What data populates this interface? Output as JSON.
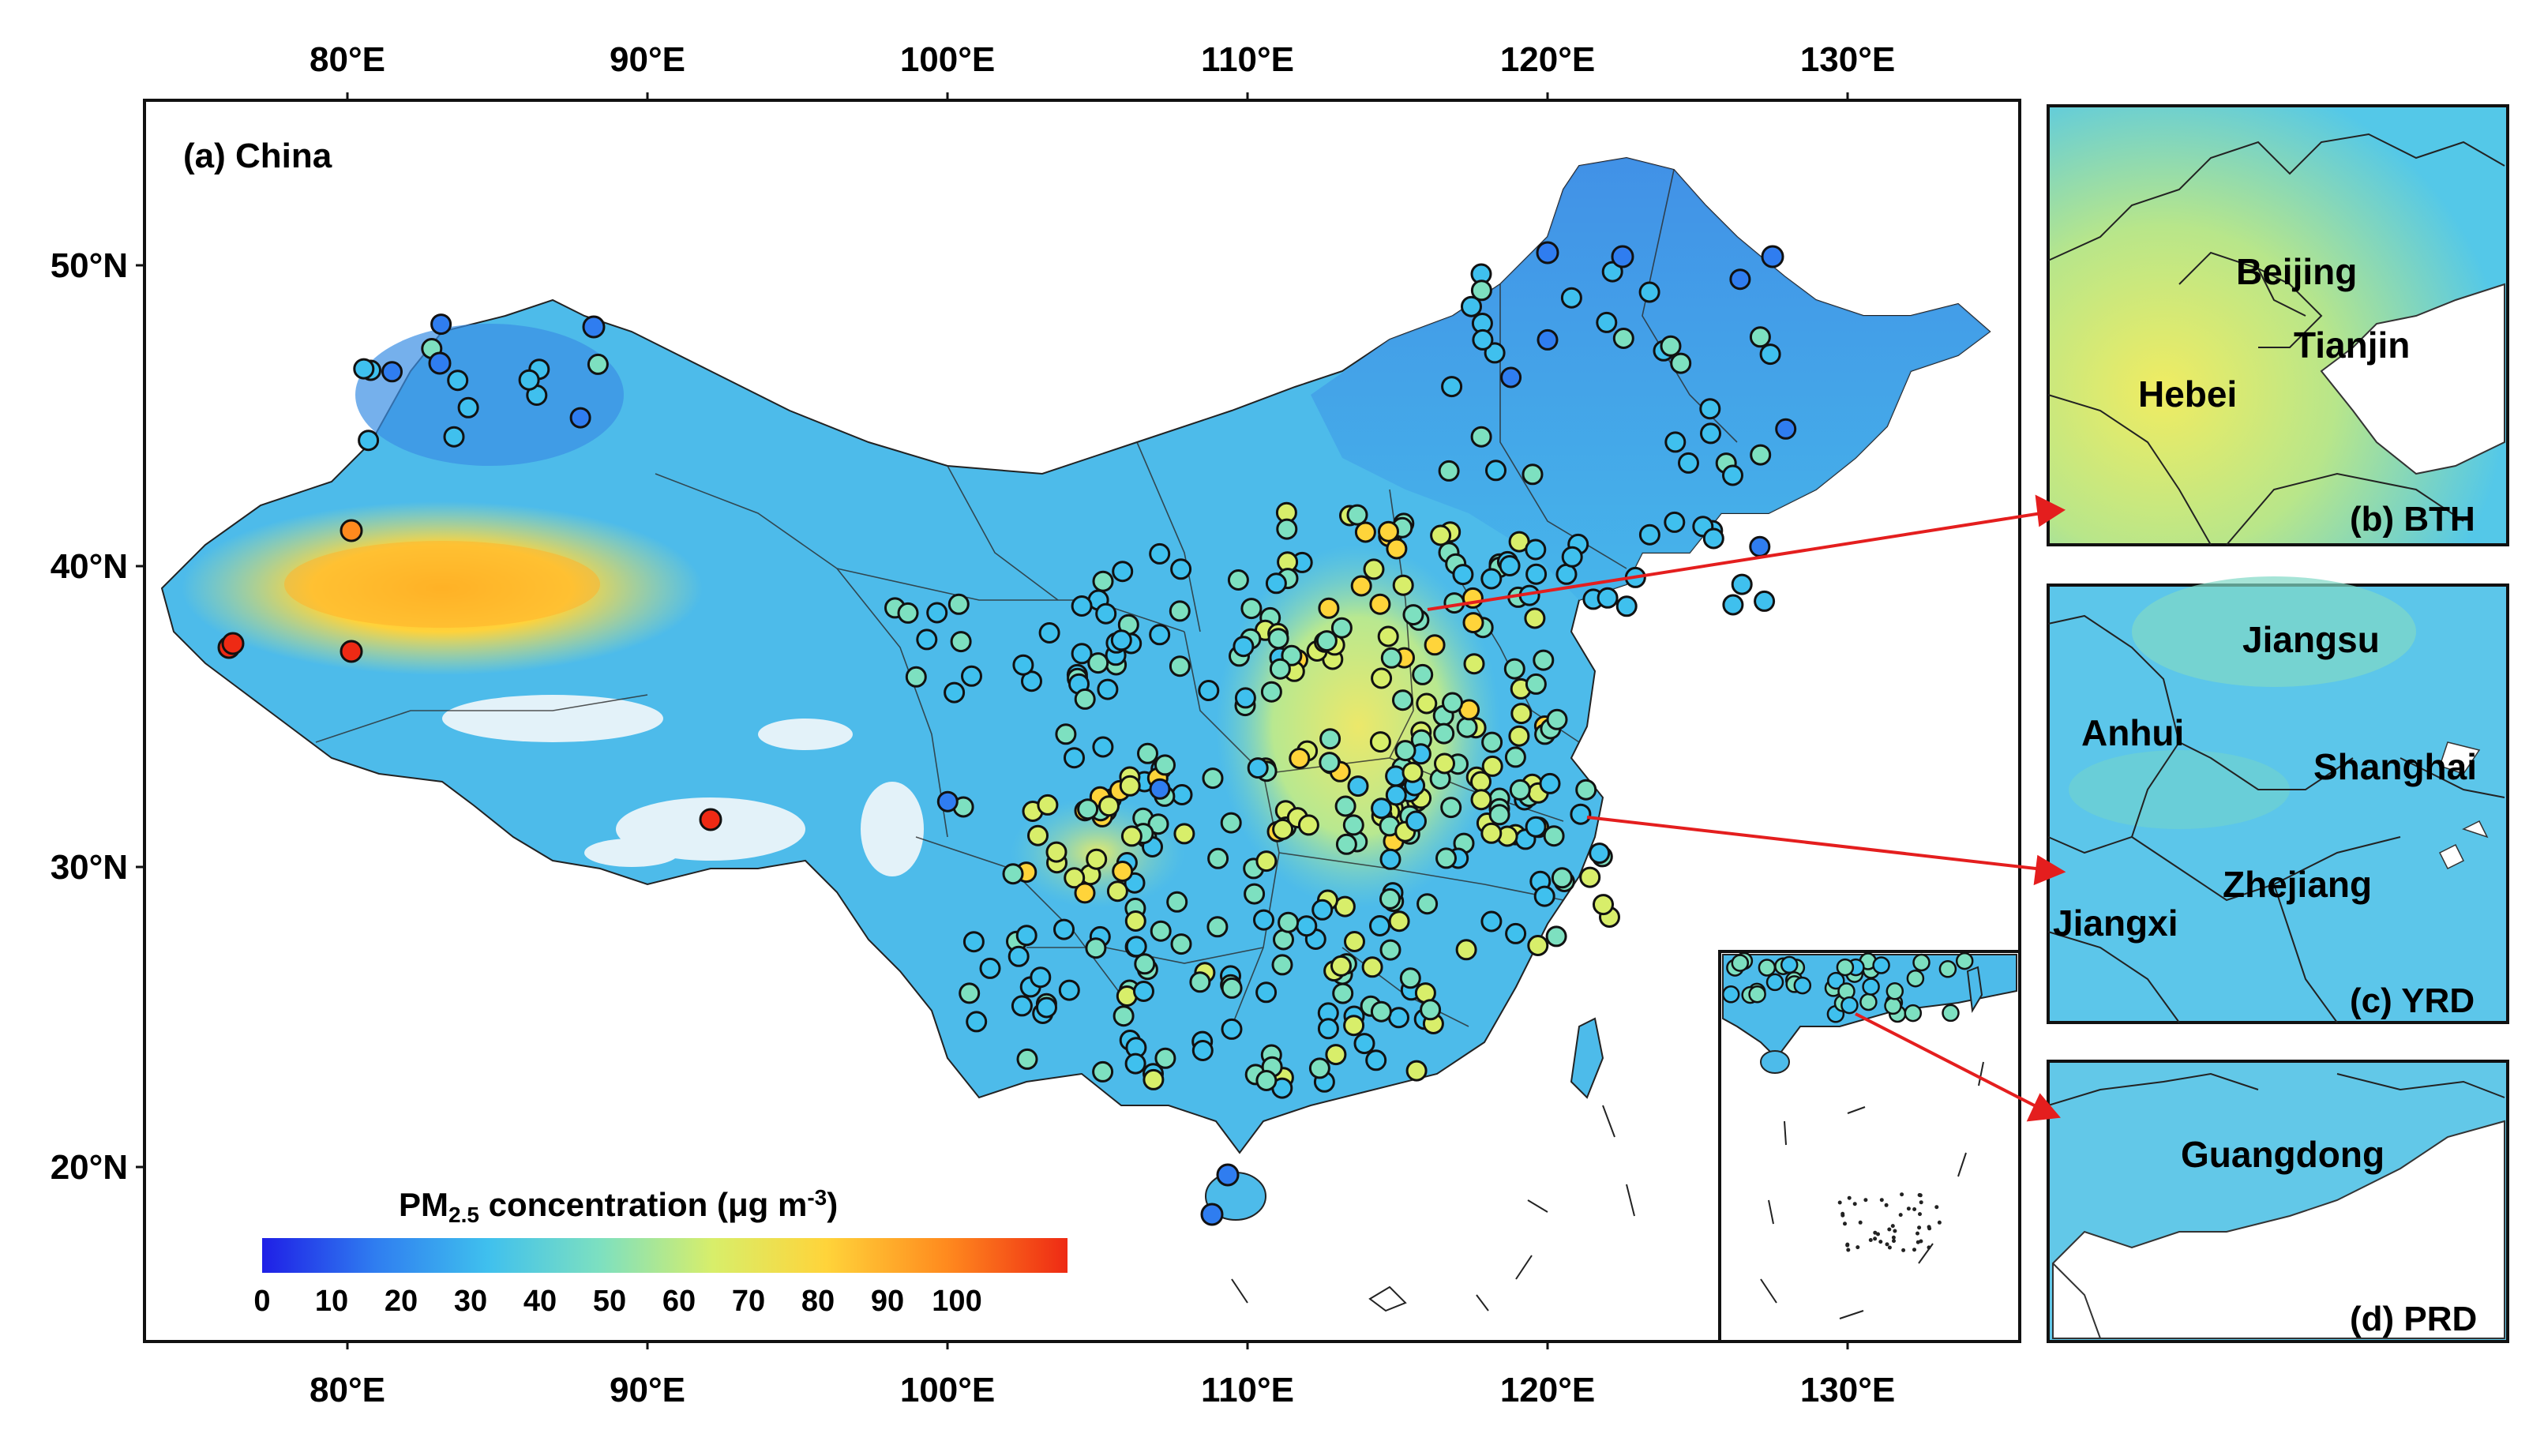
{
  "main_map": {
    "title": "(a) China",
    "x_ticks": [
      "80°E",
      "90°E",
      "100°E",
      "110°E",
      "120°E",
      "130°E"
    ],
    "y_ticks": [
      "50°N",
      "40°N",
      "30°N",
      "20°N"
    ],
    "legend": {
      "title_prefix": "PM",
      "title_sub": "2.5",
      "title_mid": " concentration (μg m",
      "title_sup": "-3",
      "title_suffix": ")",
      "ticks": [
        "0",
        "10",
        "20",
        "30",
        "40",
        "50",
        "60",
        "70",
        "80",
        "90",
        "100"
      ],
      "colors": [
        "#1f1fe6",
        "#2f7df0",
        "#3fc0ee",
        "#7de0c0",
        "#d8ee6a",
        "#ffd43a",
        "#ff8a1e",
        "#ee2a14"
      ]
    }
  },
  "panels": [
    {
      "id": "b",
      "label": "(b) BTH",
      "places": [
        "Beijing",
        "Tianjin",
        "Hebei"
      ]
    },
    {
      "id": "c",
      "label": "(c) YRD",
      "places": [
        "Jiangsu",
        "Anhui",
        "Shanghai",
        "Zhejiang",
        "Jiangxi"
      ]
    },
    {
      "id": "d",
      "label": "(d) PRD",
      "places": [
        "Guangdong"
      ]
    }
  ],
  "stations_hint": "monitoring-stations"
}
